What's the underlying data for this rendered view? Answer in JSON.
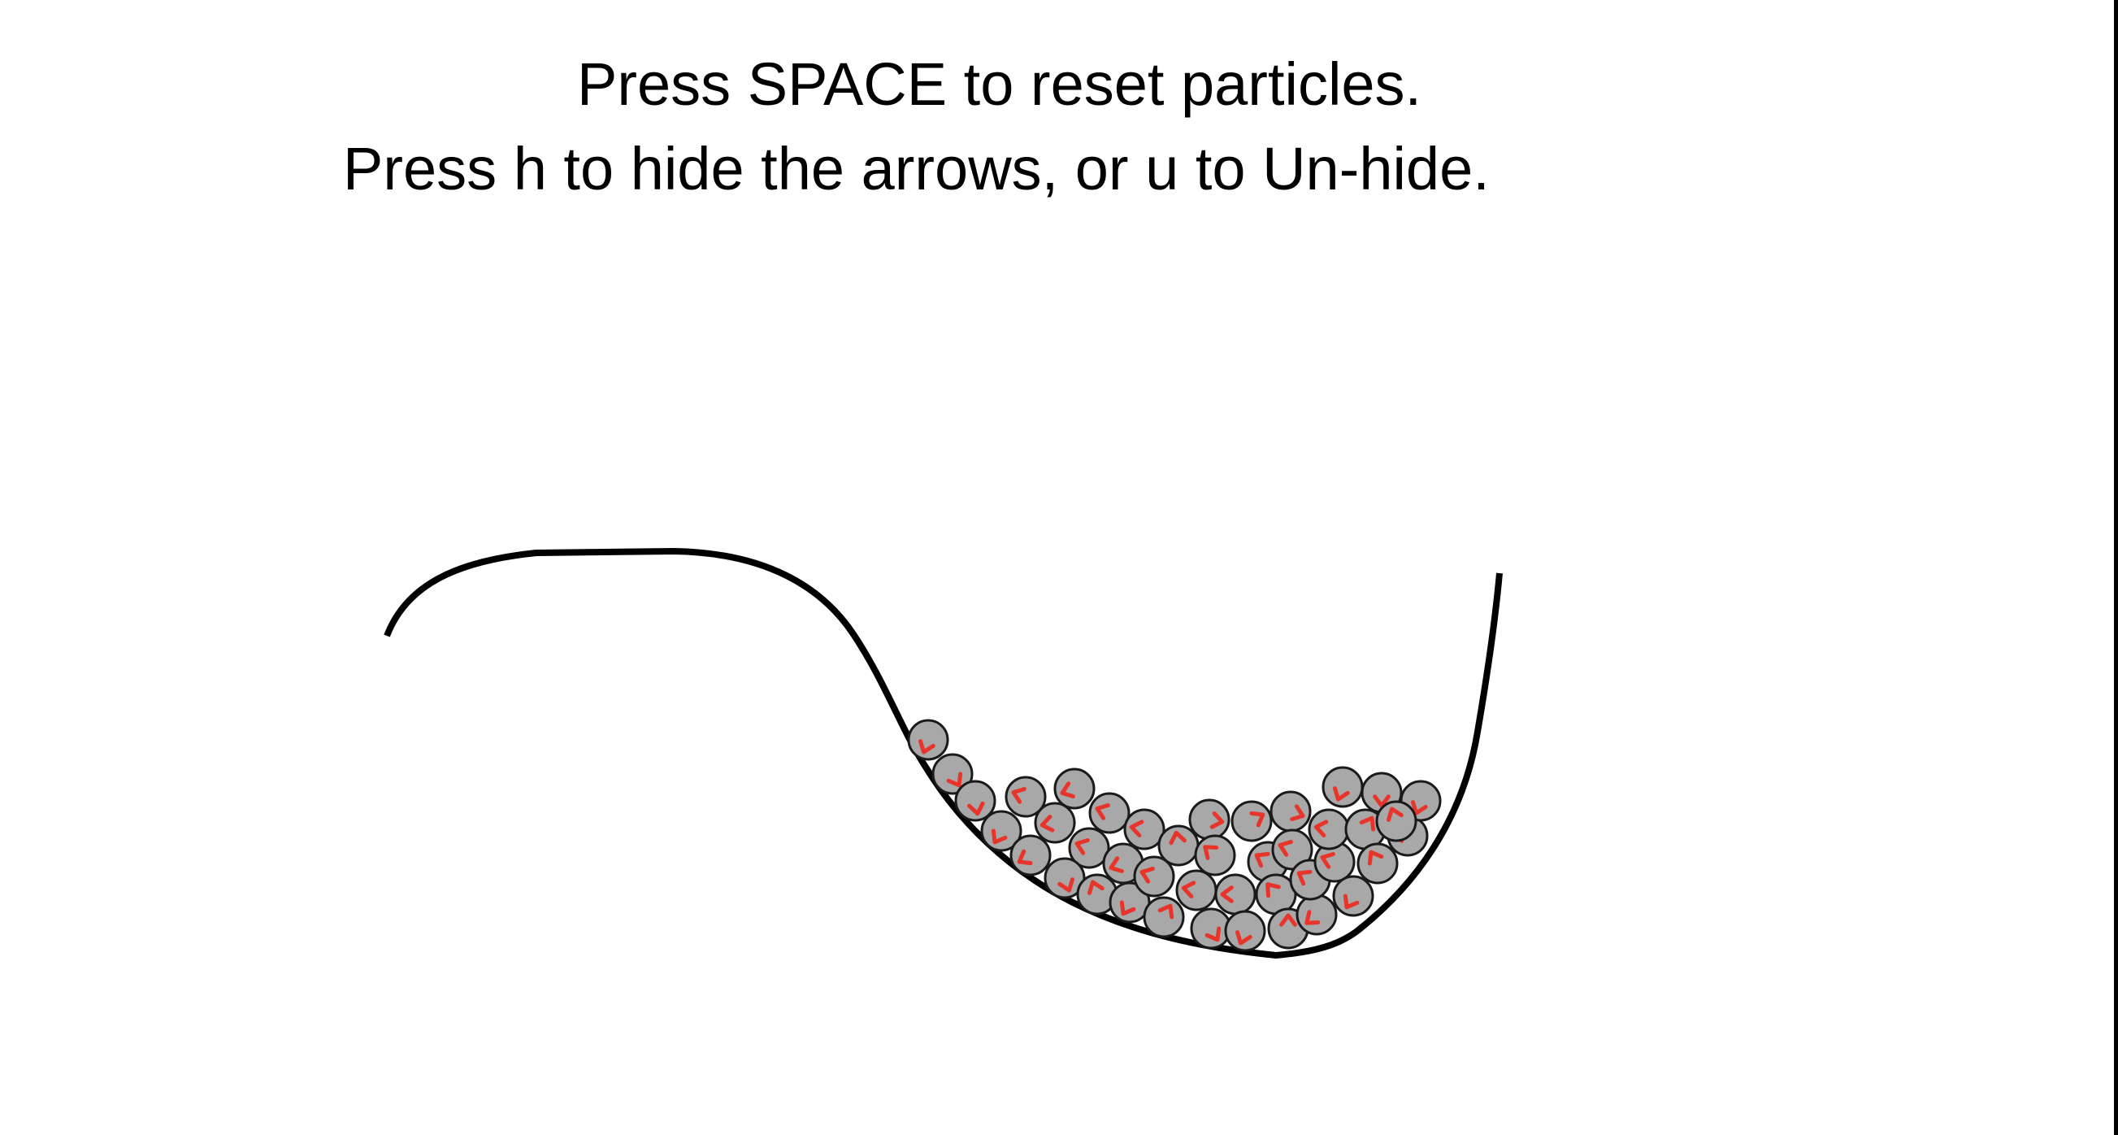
{
  "instructions": {
    "line1": "Press SPACE to reset particles.",
    "line2": "Press h to hide the arrows, or u to Un-hide."
  },
  "colors": {
    "background": "#ffffff",
    "curve": "#000000",
    "particle_fill": "#a8a8a8",
    "particle_stroke": "#1a1a1a",
    "arrow": "#e8352b"
  },
  "arrows_visible": true
}
